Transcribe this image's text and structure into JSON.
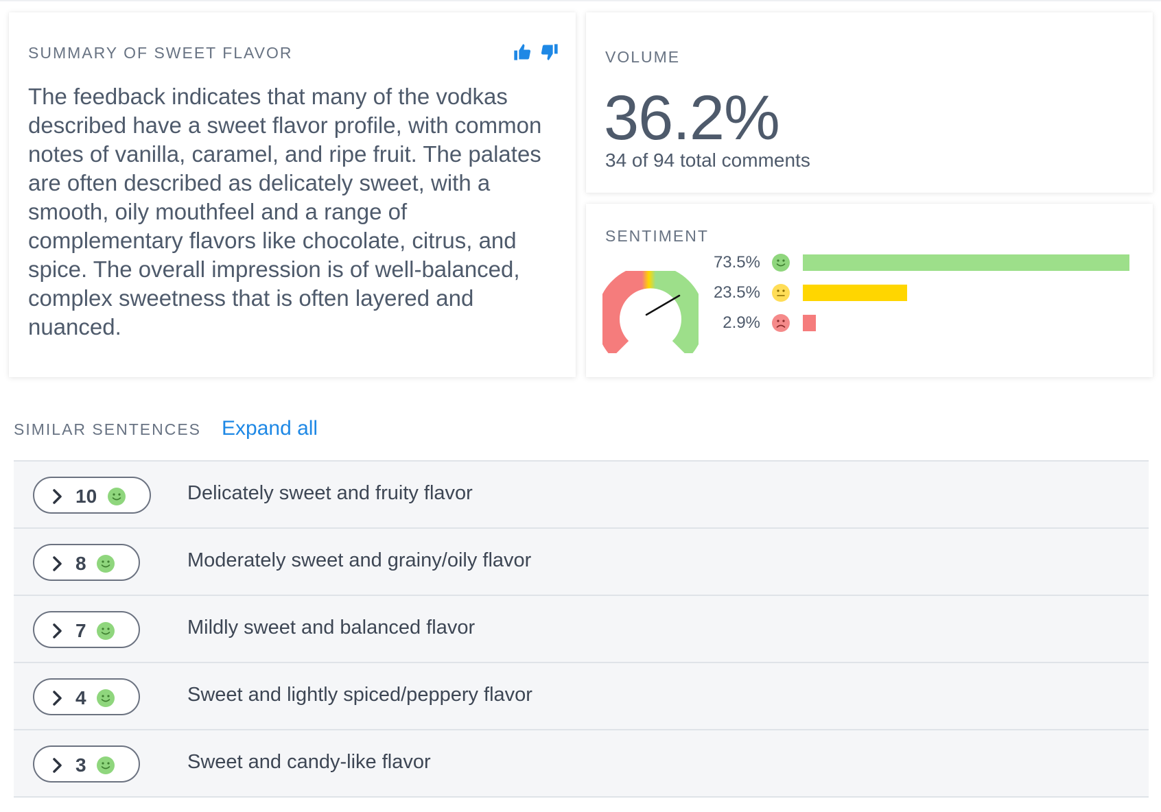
{
  "summary": {
    "title": "SUMMARY OF SWEET FLAVOR",
    "text": "The feedback indicates that many of the vodkas described have a sweet flavor profile, with common notes of vanilla, caramel, and ripe fruit. The palates are often described as delicately sweet, with a smooth, oily mouthfeel and a range of complementary flavors like chocolate, citrus, and spice. The overall impression is of well-balanced, complex sweetness that is often layered and nuanced.",
    "thumbs_up_icon": "thumbs-up-icon",
    "thumbs_down_icon": "thumbs-down-icon",
    "accent_color": "#1e88e5"
  },
  "volume": {
    "title": "VOLUME",
    "percent": "36.2%",
    "subtitle": "34 of 94 total comments"
  },
  "sentiment": {
    "title": "SENTIMENT",
    "rows": [
      {
        "percent_label": "73.5%",
        "value": 73.5,
        "face": "happy-face-icon",
        "color": "#9ddf8a"
      },
      {
        "percent_label": "23.5%",
        "value": 23.5,
        "face": "neutral-face-icon",
        "color": "#ffd600"
      },
      {
        "percent_label": "2.9%",
        "value": 2.9,
        "face": "sad-face-icon",
        "color": "#f57c7c"
      }
    ]
  },
  "similar": {
    "title": "SIMILAR SENTENCES",
    "expand_label": "Expand all",
    "items": [
      {
        "count": "10",
        "text": "Delicately sweet and fruity flavor"
      },
      {
        "count": "8",
        "text": "Moderately sweet and grainy/oily flavor"
      },
      {
        "count": "7",
        "text": "Mildly sweet and balanced flavor"
      },
      {
        "count": "4",
        "text": "Sweet and lightly spiced/peppery flavor"
      },
      {
        "count": "3",
        "text": "Sweet and candy-like flavor"
      }
    ]
  }
}
